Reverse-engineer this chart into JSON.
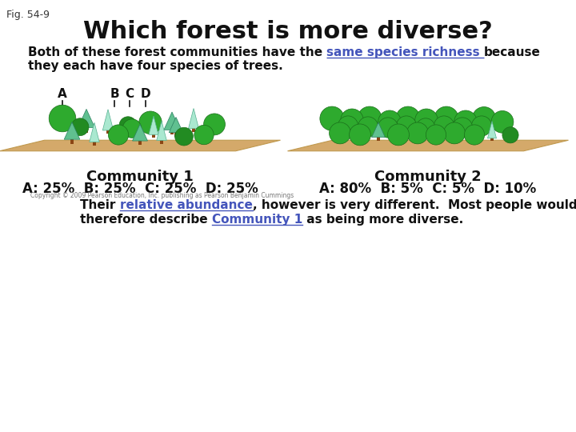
{
  "fig_label": "Fig. 54-9",
  "title": "Which forest is more diverse?",
  "title_fontsize": 22,
  "fig_label_fontsize": 9,
  "body_text_1_normal": "Both of these forest communities have the ",
  "body_text_1_highlight": "same species richness ",
  "body_text_1_end": "because",
  "body_text_2": "they each have four species of trees.",
  "highlight_color": "#4455bb",
  "community1_label": "Community 1",
  "community1_data": "A: 25%  B: 25%  C: 25%  D: 25%",
  "community2_label": "Community 2",
  "community2_data": "A: 80%  B: 5%  C: 5%  D: 10%",
  "community_label_fontsize": 13,
  "community_data_fontsize": 12,
  "bottom_text_normal1": "Their ",
  "bottom_text_highlight1": "relative abundance",
  "bottom_text_normal2": ", however is very different.  Most people would",
  "bottom_text_normal3": "therefore describe ",
  "bottom_text_highlight2": "Community 1",
  "bottom_text_normal4": " as being more diverse.",
  "copyright_text": "Copyright © 2009 Pearson Education, Inc. publishing as Pearson Benjamin Cummings",
  "background_color": "#ffffff"
}
